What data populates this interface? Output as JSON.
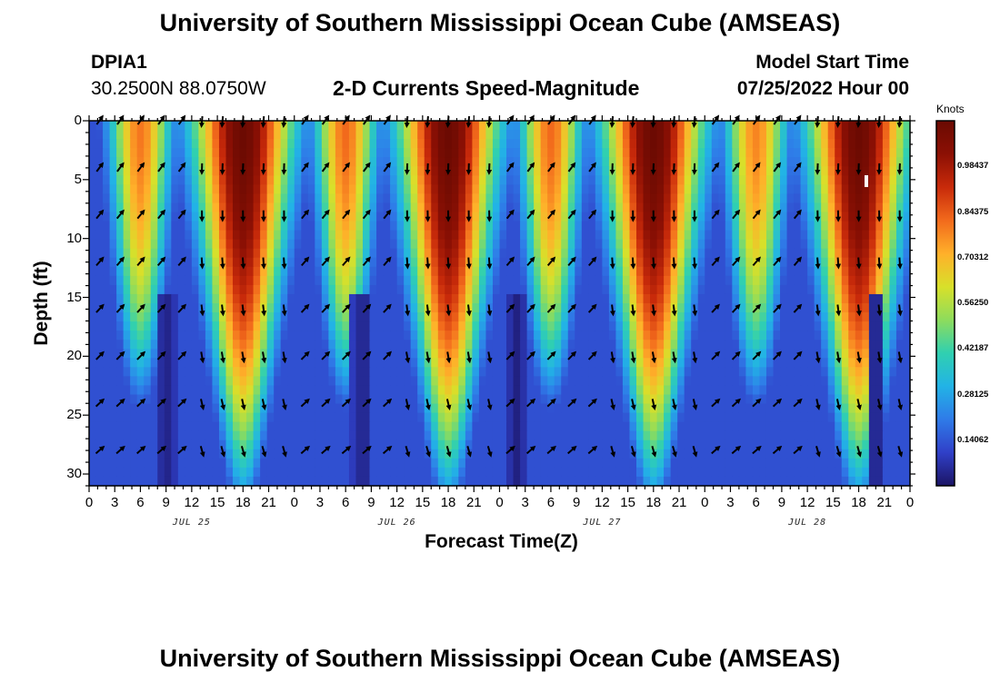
{
  "header": {
    "title": "University of Southern Mississippi Ocean Cube (AMSEAS)",
    "station_id": "DPIA1",
    "station_coords": "30.2500N  88.0750W",
    "chart_title": "2-D Currents Speed-Magnitude",
    "model_start_label": "Model Start Time",
    "model_start_value": "07/25/2022 Hour 00"
  },
  "footer": {
    "title": "University of Southern Mississippi Ocean Cube (AMSEAS)"
  },
  "chart_data": {
    "type": "heatmap",
    "title": "2-D Currents Speed-Magnitude",
    "xlabel": "Forecast Time(Z)",
    "ylabel": "Depth (ft)",
    "x_range_hours": [
      0,
      96
    ],
    "ylim": [
      0,
      31
    ],
    "y_inverted": true,
    "x_tick_labels": [
      "0",
      "3",
      "6",
      "9",
      "12",
      "15",
      "18",
      "21",
      "0",
      "3",
      "6",
      "9",
      "12",
      "15",
      "18",
      "21",
      "0",
      "3",
      "6",
      "9",
      "12",
      "15",
      "18",
      "21",
      "0",
      "3",
      "6",
      "9",
      "12",
      "15",
      "18",
      "21",
      "0"
    ],
    "y_ticks": [
      0,
      5,
      10,
      15,
      20,
      25,
      30
    ],
    "y_tick_labels": [
      "0",
      "5",
      "10",
      "15",
      "20",
      "25",
      "30"
    ],
    "date_labels": [
      {
        "label": "JUL 25",
        "hour": 12
      },
      {
        "label": "JUL 26",
        "hour": 36
      },
      {
        "label": "JUL 27",
        "hour": 60
      },
      {
        "label": "JUL 28",
        "hour": 84
      }
    ],
    "colorbar": {
      "unit": "Knots",
      "range": [
        0,
        1.125
      ],
      "ticks": [
        0.14062,
        0.28125,
        0.42187,
        0.5625,
        0.70312,
        0.84375,
        0.98437
      ],
      "tick_labels": [
        "0.14062",
        "0.28125",
        "0.42187",
        "0.56250",
        "0.70312",
        "0.84375",
        "0.98437"
      ],
      "colors": [
        "#1b1464",
        "#3040c8",
        "#2f7be8",
        "#22b3e6",
        "#30d0b0",
        "#8edc5c",
        "#d8e02a",
        "#ffb02a",
        "#f26a1c",
        "#c82a0a",
        "#8c1004",
        "#6a0a02"
      ]
    },
    "speed_peaks": [
      {
        "hour": 6,
        "speed": 0.8
      },
      {
        "hour": 18,
        "speed": 1.12
      },
      {
        "hour": 30,
        "speed": 0.82
      },
      {
        "hour": 42,
        "speed": 1.12
      },
      {
        "hour": 54,
        "speed": 0.82
      },
      {
        "hour": 66,
        "speed": 1.12
      },
      {
        "hour": 78,
        "speed": 0.78
      },
      {
        "hour": 90,
        "speed": 1.12
      }
    ],
    "vector_depths": [
      0,
      4,
      8,
      12,
      16,
      20,
      24,
      28
    ],
    "vector_hours_step": 2.4
  }
}
